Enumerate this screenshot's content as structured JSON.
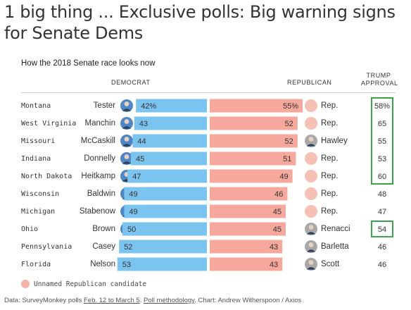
{
  "headline": "1 big thing ... Exclusive polls: Big warning signs for Senate Dems",
  "colors": {
    "dem_bar": "#7cc4f0",
    "rep_bar": "#f5a89b",
    "unnamed_rep": "#f7c0b4",
    "highlight_box": "#3aa64b"
  },
  "legend": {
    "label": "Unnamed Republican candidate"
  },
  "footer": {
    "prefix": "Data: SurveyMonkey polls ",
    "dates_link": "Feb. 12 to March 5",
    "sep1": ". ",
    "method_link": "Poll methodology",
    "suffix": ". Chart: Andrew Witherspoon / Axios"
  },
  "chart_data": {
    "type": "bar",
    "title": "How the 2018 Senate race looks now",
    "democrat_header": "DEMOCRAT",
    "republican_header": "REPUBLICAN",
    "approval_header": "TRUMP\nAPPROVAL",
    "rows": [
      {
        "state": "Montana",
        "democrat": "Tester",
        "dem_value": 42,
        "dem_label": "42%",
        "republican": "Rep.",
        "rep_value": 55,
        "rep_label": "55%",
        "rep_named": false,
        "approval": "58%",
        "highlight": true
      },
      {
        "state": "West Virginia",
        "democrat": "Manchin",
        "dem_value": 43,
        "dem_label": "43",
        "republican": "Rep.",
        "rep_value": 52,
        "rep_label": "52",
        "rep_named": false,
        "approval": "65",
        "highlight": true
      },
      {
        "state": "Missouri",
        "democrat": "McCaskill",
        "dem_value": 44,
        "dem_label": "44",
        "republican": "Hawley",
        "rep_value": 52,
        "rep_label": "52",
        "rep_named": true,
        "approval": "55",
        "highlight": true
      },
      {
        "state": "Indiana",
        "democrat": "Donnelly",
        "dem_value": 45,
        "dem_label": "45",
        "republican": "Rep.",
        "rep_value": 51,
        "rep_label": "51",
        "rep_named": false,
        "approval": "53",
        "highlight": true
      },
      {
        "state": "North Dakota",
        "democrat": "Heitkamp",
        "dem_value": 47,
        "dem_label": "47",
        "republican": "Rep.",
        "rep_value": 49,
        "rep_label": "49",
        "rep_named": false,
        "approval": "60",
        "highlight": true
      },
      {
        "state": "Wisconsin",
        "democrat": "Baldwin",
        "dem_value": 49,
        "dem_label": "49",
        "republican": "Rep.",
        "rep_value": 46,
        "rep_label": "46",
        "rep_named": false,
        "approval": "48",
        "highlight": false
      },
      {
        "state": "Michigan",
        "democrat": "Stabenow",
        "dem_value": 49,
        "dem_label": "49",
        "republican": "Rep.",
        "rep_value": 45,
        "rep_label": "45",
        "rep_named": false,
        "approval": "47",
        "highlight": false
      },
      {
        "state": "Ohio",
        "democrat": "Brown",
        "dem_value": 50,
        "dem_label": "50",
        "republican": "Renacci",
        "rep_value": 45,
        "rep_label": "45",
        "rep_named": true,
        "approval": "54",
        "highlight": true
      },
      {
        "state": "Pennsylvania",
        "democrat": "Casey",
        "dem_value": 52,
        "dem_label": "52",
        "republican": "Barletta",
        "rep_value": 43,
        "rep_label": "43",
        "rep_named": true,
        "approval": "46",
        "highlight": false
      },
      {
        "state": "Florida",
        "democrat": "Nelson",
        "dem_value": 53,
        "dem_label": "53",
        "republican": "Scott",
        "rep_value": 43,
        "rep_label": "43",
        "rep_named": true,
        "approval": "46",
        "highlight": false
      }
    ]
  }
}
